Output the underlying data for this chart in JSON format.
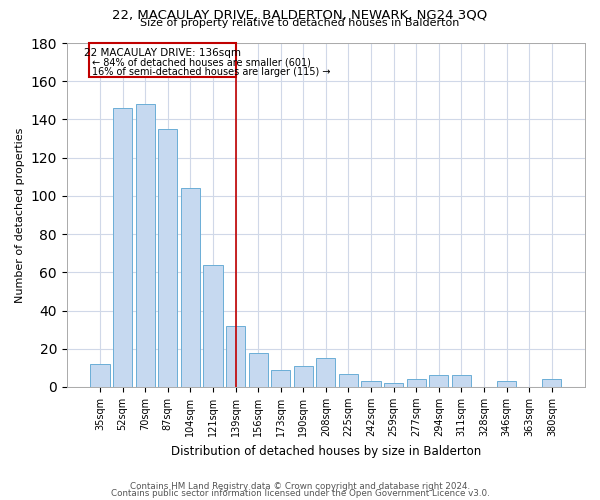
{
  "title": "22, MACAULAY DRIVE, BALDERTON, NEWARK, NG24 3QQ",
  "subtitle": "Size of property relative to detached houses in Balderton",
  "xlabel": "Distribution of detached houses by size in Balderton",
  "ylabel": "Number of detached properties",
  "footer1": "Contains HM Land Registry data © Crown copyright and database right 2024.",
  "footer2": "Contains public sector information licensed under the Open Government Licence v3.0.",
  "annotation_title": "22 MACAULAY DRIVE: 136sqm",
  "annotation_line1": "← 84% of detached houses are smaller (601)",
  "annotation_line2": "16% of semi-detached houses are larger (115) →",
  "categories": [
    "35sqm",
    "52sqm",
    "70sqm",
    "87sqm",
    "104sqm",
    "121sqm",
    "139sqm",
    "156sqm",
    "173sqm",
    "190sqm",
    "208sqm",
    "225sqm",
    "242sqm",
    "259sqm",
    "277sqm",
    "294sqm",
    "311sqm",
    "328sqm",
    "346sqm",
    "363sqm",
    "380sqm"
  ],
  "values": [
    12,
    146,
    148,
    135,
    104,
    64,
    32,
    18,
    9,
    11,
    15,
    7,
    3,
    2,
    4,
    6,
    6,
    0,
    3,
    0,
    4
  ],
  "bar_color": "#c6d9f0",
  "bar_edge_color": "#6baed6",
  "vline_color": "#c00000",
  "vline_position": 6,
  "annotation_box_color": "#c00000",
  "background_color": "#ffffff",
  "grid_color": "#d0d8e8",
  "ylim": [
    0,
    180
  ],
  "yticks": [
    0,
    20,
    40,
    60,
    80,
    100,
    120,
    140,
    160,
    180
  ]
}
